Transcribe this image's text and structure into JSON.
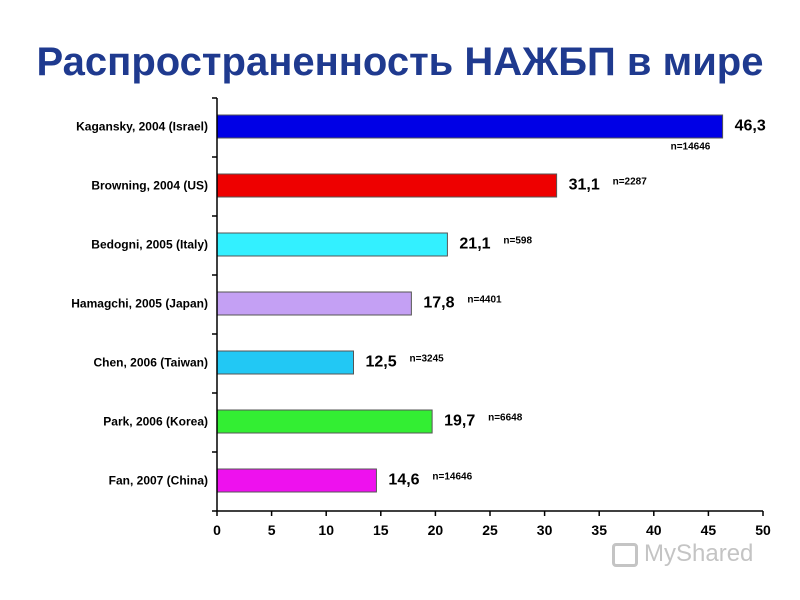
{
  "chart_data": {
    "type": "bar",
    "orientation": "horizontal",
    "title": "Распространенность НАЖБП в мире",
    "categories": [
      "Kagansky, 2004 (Israel)",
      "Browning, 2004 (US)",
      "Bedogni, 2005 (Italy)",
      "Hamagchi, 2005 (Japan)",
      "Chen, 2006 (Taiwan)",
      "Park, 2006 (Korea)",
      "Fan, 2007 (China)"
    ],
    "values": [
      46.3,
      31.1,
      21.1,
      17.8,
      12.5,
      19.7,
      14.6
    ],
    "value_labels": [
      "46,3",
      "31,1",
      "21,1",
      "17,8",
      "12,5",
      "19,7",
      "14,6"
    ],
    "n_labels": [
      "n=14646",
      "n=2287",
      "n=598",
      "n=4401",
      "n=3245",
      "n=6648",
      "n=14646"
    ],
    "colors": [
      "#0000e6",
      "#ee0000",
      "#33f0ff",
      "#c4a0f4",
      "#22c8f4",
      "#33ee33",
      "#ee11ee"
    ],
    "xlim": [
      0,
      50
    ],
    "xticks": [
      0,
      5,
      10,
      15,
      20,
      25,
      30,
      35,
      40,
      45,
      50
    ],
    "xlabel": "",
    "ylabel": "",
    "grid": false,
    "legend": "none"
  },
  "watermark": "MyShared"
}
